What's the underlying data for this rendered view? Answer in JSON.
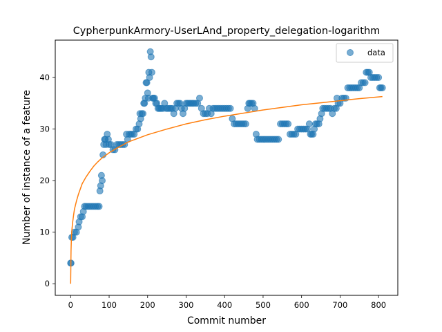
{
  "chart_data": {
    "type": "scatter",
    "title": "CypherpunkArmory-UserLAnd_property_delegation-logarithm",
    "xlabel": "Commit number",
    "ylabel": "Number of instance of a feature",
    "xlim": [
      -40,
      850
    ],
    "ylim": [
      -2.25,
      47.25
    ],
    "xticks": [
      0,
      100,
      200,
      300,
      400,
      500,
      600,
      700,
      800
    ],
    "yticks": [
      0,
      10,
      20,
      30,
      40
    ],
    "grid": false,
    "legend_position": "top-right",
    "series": [
      {
        "name": "data",
        "kind": "points",
        "color": "#1f77b4",
        "opacity": 0.6,
        "points": [
          [
            0,
            4
          ],
          [
            1,
            4
          ],
          [
            3,
            9
          ],
          [
            6,
            9
          ],
          [
            10,
            10
          ],
          [
            15,
            10
          ],
          [
            20,
            11
          ],
          [
            22,
            12
          ],
          [
            26,
            13
          ],
          [
            30,
            13
          ],
          [
            33,
            14
          ],
          [
            36,
            15
          ],
          [
            40,
            15
          ],
          [
            45,
            15
          ],
          [
            50,
            15
          ],
          [
            55,
            15
          ],
          [
            60,
            15
          ],
          [
            65,
            15
          ],
          [
            70,
            15
          ],
          [
            74,
            15
          ],
          [
            76,
            18
          ],
          [
            78,
            19
          ],
          [
            80,
            21
          ],
          [
            82,
            20
          ],
          [
            84,
            25
          ],
          [
            86,
            27
          ],
          [
            88,
            28
          ],
          [
            90,
            28
          ],
          [
            92,
            27
          ],
          [
            95,
            29
          ],
          [
            98,
            28
          ],
          [
            100,
            27
          ],
          [
            105,
            27
          ],
          [
            110,
            26
          ],
          [
            115,
            26
          ],
          [
            120,
            27
          ],
          [
            125,
            27
          ],
          [
            130,
            27
          ],
          [
            135,
            27
          ],
          [
            140,
            27
          ],
          [
            145,
            29
          ],
          [
            148,
            28
          ],
          [
            152,
            29
          ],
          [
            156,
            29
          ],
          [
            160,
            29
          ],
          [
            165,
            29
          ],
          [
            170,
            30
          ],
          [
            174,
            30
          ],
          [
            178,
            31
          ],
          [
            180,
            33
          ],
          [
            182,
            32
          ],
          [
            185,
            33
          ],
          [
            188,
            33
          ],
          [
            190,
            35
          ],
          [
            192,
            35
          ],
          [
            194,
            36
          ],
          [
            196,
            39
          ],
          [
            198,
            39
          ],
          [
            200,
            37
          ],
          [
            202,
            36
          ],
          [
            203,
            41
          ],
          [
            205,
            40
          ],
          [
            207,
            45
          ],
          [
            209,
            44
          ],
          [
            211,
            41
          ],
          [
            213,
            36
          ],
          [
            215,
            36
          ],
          [
            218,
            36
          ],
          [
            221,
            35
          ],
          [
            224,
            35
          ],
          [
            227,
            34
          ],
          [
            230,
            34
          ],
          [
            233,
            34
          ],
          [
            236,
            34
          ],
          [
            240,
            34
          ],
          [
            244,
            35
          ],
          [
            248,
            34
          ],
          [
            252,
            34
          ],
          [
            256,
            34
          ],
          [
            260,
            34
          ],
          [
            264,
            34
          ],
          [
            268,
            33
          ],
          [
            272,
            34
          ],
          [
            276,
            35
          ],
          [
            280,
            35
          ],
          [
            284,
            35
          ],
          [
            288,
            34
          ],
          [
            292,
            33
          ],
          [
            296,
            34
          ],
          [
            300,
            35
          ],
          [
            304,
            35
          ],
          [
            308,
            35
          ],
          [
            312,
            35
          ],
          [
            316,
            35
          ],
          [
            320,
            35
          ],
          [
            325,
            35
          ],
          [
            330,
            35
          ],
          [
            335,
            36
          ],
          [
            340,
            34
          ],
          [
            345,
            33
          ],
          [
            350,
            33
          ],
          [
            355,
            33
          ],
          [
            360,
            34
          ],
          [
            365,
            33
          ],
          [
            370,
            34
          ],
          [
            375,
            34
          ],
          [
            380,
            34
          ],
          [
            385,
            34
          ],
          [
            390,
            34
          ],
          [
            395,
            34
          ],
          [
            400,
            34
          ],
          [
            405,
            34
          ],
          [
            410,
            34
          ],
          [
            415,
            34
          ],
          [
            420,
            32
          ],
          [
            425,
            31
          ],
          [
            430,
            31
          ],
          [
            435,
            31
          ],
          [
            440,
            31
          ],
          [
            445,
            31
          ],
          [
            450,
            31
          ],
          [
            455,
            31
          ],
          [
            460,
            34
          ],
          [
            463,
            35
          ],
          [
            466,
            35
          ],
          [
            470,
            35
          ],
          [
            474,
            35
          ],
          [
            478,
            34
          ],
          [
            482,
            29
          ],
          [
            485,
            28
          ],
          [
            490,
            28
          ],
          [
            495,
            28
          ],
          [
            500,
            28
          ],
          [
            505,
            28
          ],
          [
            510,
            28
          ],
          [
            515,
            28
          ],
          [
            520,
            28
          ],
          [
            525,
            28
          ],
          [
            530,
            28
          ],
          [
            535,
            28
          ],
          [
            540,
            28
          ],
          [
            545,
            31
          ],
          [
            550,
            31
          ],
          [
            555,
            31
          ],
          [
            560,
            31
          ],
          [
            565,
            31
          ],
          [
            570,
            29
          ],
          [
            575,
            29
          ],
          [
            580,
            29
          ],
          [
            585,
            29
          ],
          [
            590,
            30
          ],
          [
            595,
            30
          ],
          [
            600,
            30
          ],
          [
            605,
            30
          ],
          [
            610,
            30
          ],
          [
            615,
            30
          ],
          [
            620,
            31
          ],
          [
            623,
            29
          ],
          [
            626,
            29
          ],
          [
            630,
            29
          ],
          [
            633,
            30
          ],
          [
            636,
            31
          ],
          [
            640,
            31
          ],
          [
            645,
            31
          ],
          [
            648,
            32
          ],
          [
            652,
            33
          ],
          [
            655,
            34
          ],
          [
            660,
            34
          ],
          [
            665,
            34
          ],
          [
            670,
            34
          ],
          [
            675,
            34
          ],
          [
            680,
            33
          ],
          [
            685,
            34
          ],
          [
            690,
            34
          ],
          [
            692,
            36
          ],
          [
            695,
            35
          ],
          [
            700,
            35
          ],
          [
            705,
            36
          ],
          [
            710,
            36
          ],
          [
            715,
            36
          ],
          [
            720,
            38
          ],
          [
            725,
            38
          ],
          [
            730,
            38
          ],
          [
            735,
            38
          ],
          [
            740,
            38
          ],
          [
            745,
            38
          ],
          [
            750,
            38
          ],
          [
            755,
            39
          ],
          [
            760,
            39
          ],
          [
            765,
            39
          ],
          [
            768,
            41
          ],
          [
            772,
            41
          ],
          [
            776,
            41
          ],
          [
            780,
            40
          ],
          [
            785,
            40
          ],
          [
            790,
            40
          ],
          [
            795,
            40
          ],
          [
            800,
            40
          ],
          [
            803,
            38
          ],
          [
            806,
            38
          ],
          [
            810,
            38
          ]
        ]
      },
      {
        "name": "",
        "kind": "line",
        "color": "#ff7f0e",
        "points": [
          [
            0,
            0
          ],
          [
            1,
            6.4
          ],
          [
            2,
            9
          ],
          [
            3,
            10.2
          ],
          [
            5,
            11.8
          ],
          [
            8,
            13.5
          ],
          [
            10,
            14.5
          ],
          [
            15,
            16
          ],
          [
            20,
            17.3
          ],
          [
            30,
            19.4
          ],
          [
            40,
            20.7
          ],
          [
            50,
            21.8
          ],
          [
            60,
            22.8
          ],
          [
            70,
            23.6
          ],
          [
            80,
            24.3
          ],
          [
            100,
            25.4
          ],
          [
            120,
            26.3
          ],
          [
            150,
            27.5
          ],
          [
            200,
            28.9
          ],
          [
            250,
            30
          ],
          [
            300,
            31
          ],
          [
            350,
            31.8
          ],
          [
            400,
            32.5
          ],
          [
            450,
            33.1
          ],
          [
            500,
            33.7
          ],
          [
            550,
            34.2
          ],
          [
            600,
            34.7
          ],
          [
            650,
            35.1
          ],
          [
            700,
            35.5
          ],
          [
            750,
            35.9
          ],
          [
            810,
            36.3
          ]
        ]
      }
    ]
  }
}
